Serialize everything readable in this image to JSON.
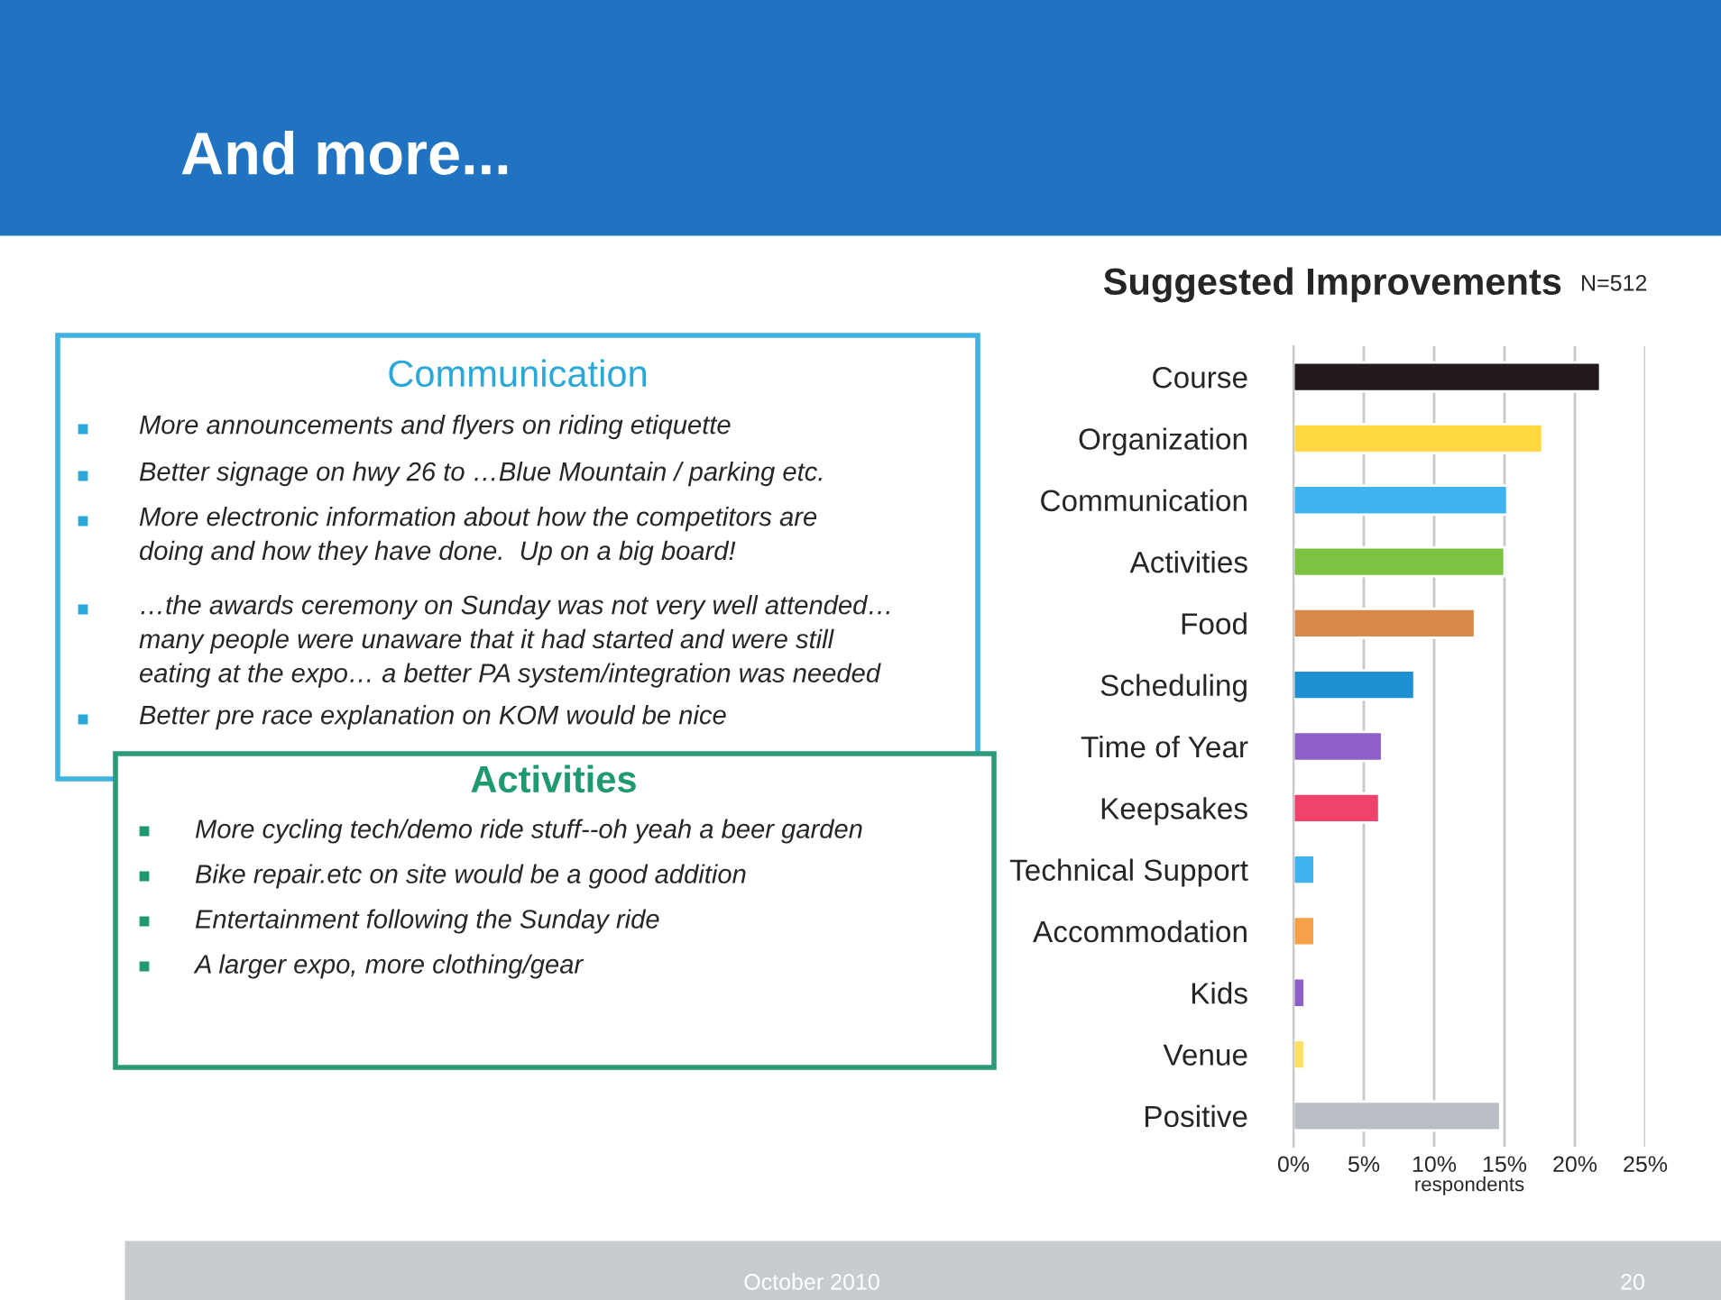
{
  "chart_data": {
    "type": "bar",
    "orientation": "horizontal",
    "title": "Suggested Improvements",
    "subtitle": "N=512",
    "xlabel": "respondents",
    "categories": [
      "Course",
      "Organization",
      "Communication",
      "Activities",
      "Food",
      "Scheduling",
      "Time of Year",
      "Keepsakes",
      "Technical Support",
      "Accommodation",
      "Kids",
      "Venue",
      "Positive"
    ],
    "values": [
      21.8,
      17.7,
      15.2,
      15.0,
      12.9,
      8.6,
      6.3,
      6.1,
      1.5,
      1.5,
      0.8,
      0.8,
      14.7
    ],
    "colors": [
      "#231a1f",
      "#ffd740",
      "#3fb3f0",
      "#7dc242",
      "#d98a4a",
      "#1e8fd0",
      "#8e5fc8",
      "#f0426a",
      "#3fb3f0",
      "#f7a04a",
      "#8e5fc8",
      "#ffe066",
      "#b8bec4"
    ],
    "xlim": [
      0,
      25
    ],
    "xticks": [
      {
        "value": 0,
        "label": "0%"
      },
      {
        "value": 5,
        "label": "5%"
      },
      {
        "value": 10,
        "label": "10%"
      },
      {
        "value": 15,
        "label": "15%"
      },
      {
        "value": 20,
        "label": "20%"
      },
      {
        "value": 25,
        "label": "25%"
      }
    ],
    "grid": "x",
    "annotations": [
      "And more...",
      "Communication",
      "More announcements and flyers on riding etiquette",
      "Better signage on hwy 26 to …Blue Mountain / parking etc.",
      "More electronic information about how the competitors are\ndoing and how they have done.  Up on a big board!",
      "…the awards ceremony on Sunday was not very well attended…\nmany people were unaware that it had started and were still\neating at the expo… a better PA system/integration was needed",
      "Better pre race explanation on KOM would be nice",
      "Activities",
      "More cycling tech/demo ride stuff--oh yeah a beer garden",
      "Bike repair.etc on site would be a good addition",
      "Entertainment following the Sunday ride",
      "A larger expo, more clothing/gear",
      "October 2010",
      "20"
    ]
  }
}
